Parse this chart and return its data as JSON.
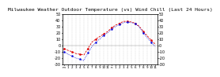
{
  "title": "Milwaukee Weather Outdoor Temperature (vs) Wind Chill (Last 24 Hours)",
  "title_fontsize": 4.5,
  "background_color": "#ffffff",
  "grid_color": "#cccccc",
  "temp_color": "#dd0000",
  "windchill_color": "#0000dd",
  "ylim": [
    -30,
    50
  ],
  "yticks": [
    -30,
    -20,
    -10,
    0,
    10,
    20,
    30,
    40,
    50
  ],
  "ylabel_fontsize": 3.5,
  "xlabel_fontsize": 3.0,
  "hours": [
    0,
    1,
    2,
    3,
    4,
    5,
    6,
    7,
    8,
    9,
    10,
    11,
    12,
    13,
    14,
    15,
    16,
    17,
    18,
    19,
    20,
    21,
    22,
    23
  ],
  "temp": [
    -5,
    -8,
    -10,
    -13,
    -14,
    -15,
    -5,
    5,
    10,
    14,
    18,
    22,
    28,
    32,
    35,
    38,
    38,
    37,
    35,
    30,
    22,
    15,
    8,
    2
  ],
  "windchill": [
    -10,
    -14,
    -17,
    -20,
    -22,
    -24,
    -12,
    -2,
    5,
    10,
    16,
    20,
    26,
    30,
    33,
    36,
    37,
    36,
    34,
    29,
    20,
    12,
    5,
    -2
  ],
  "xtick_labels": [
    "m",
    "1",
    "2",
    "3",
    "4",
    "5",
    "6",
    "7",
    "8",
    "9",
    "10",
    "11",
    "n",
    "1",
    "2",
    "3",
    "4",
    "5",
    "6",
    "7",
    "8",
    "9",
    "10",
    "11"
  ],
  "vgrid_positions": [
    0,
    1,
    2,
    3,
    4,
    5,
    6,
    7,
    8,
    9,
    10,
    11,
    12,
    13,
    14,
    15,
    16,
    17,
    18,
    19,
    20,
    21,
    22,
    23
  ]
}
